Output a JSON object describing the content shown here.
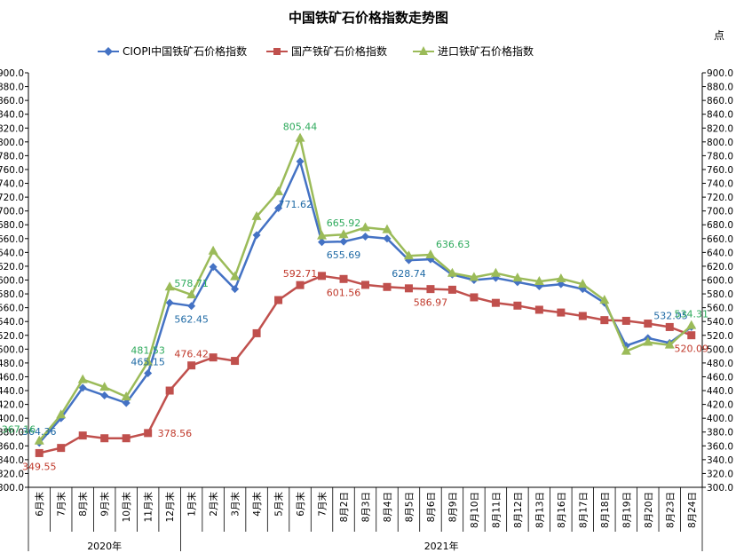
{
  "chart_data": {
    "type": "line",
    "title": "中国铁矿石价格指数走势图",
    "unit_label": "点",
    "ylim": [
      300,
      900
    ],
    "ystep": 20,
    "y_tick_decimals": 1,
    "categories": [
      "6月末",
      "7月末",
      "8月末",
      "9月末",
      "10月末",
      "11月末",
      "12月末",
      "1月末",
      "2月末",
      "3月末",
      "4月末",
      "5月末",
      "6月末",
      "7月末",
      "8月2日",
      "8月3日",
      "8月4日",
      "8月5日",
      "8月6日",
      "8月9日",
      "8月10日",
      "8月11日",
      "8月12日",
      "8月13日",
      "8月16日",
      "8月17日",
      "8月18日",
      "8月19日",
      "8月20日",
      "8月23日",
      "8月24日"
    ],
    "groups": [
      {
        "label": "2020年",
        "start": 0,
        "end": 6
      },
      {
        "label": "2021年",
        "start": 7,
        "end": 30
      }
    ],
    "series": [
      {
        "name": "CIOPI中国铁矿石价格指数",
        "color": "#4472C4",
        "marker": "diamond",
        "values": [
          364.36,
          400,
          444,
          433,
          422,
          465.15,
          567,
          562.45,
          619,
          587,
          665,
          704,
          771.62,
          655,
          655.69,
          663,
          660,
          628.74,
          630,
          608,
          600,
          603,
          597,
          591,
          594,
          587,
          567,
          505,
          516,
          509,
          532.05
        ]
      },
      {
        "name": "国产铁矿石价格指数",
        "color": "#C0504D",
        "marker": "square",
        "values": [
          349.55,
          357,
          375,
          371,
          371,
          378.56,
          440,
          476.42,
          488,
          483,
          523,
          571,
          592.71,
          606,
          601.56,
          593,
          590,
          588,
          586.97,
          586,
          575,
          567,
          563,
          557,
          553,
          548,
          542,
          541,
          537,
          532,
          520.09
        ]
      },
      {
        "name": "进口铁矿石价格指数",
        "color": "#9BBB59",
        "marker": "triangle",
        "values": [
          367.16,
          405,
          456,
          445,
          431,
          481.53,
          590,
          578.71,
          642,
          605,
          692,
          728,
          805.44,
          664,
          665.92,
          676,
          673,
          635,
          636.63,
          610,
          604,
          610,
          603,
          598,
          602,
          594,
          571,
          497,
          510,
          506,
          534.31
        ]
      }
    ],
    "annotations": [
      {
        "series": 0,
        "index": 0,
        "text": "364.36",
        "pos": "above"
      },
      {
        "series": 0,
        "index": 5,
        "text": "465.15",
        "pos": "above"
      },
      {
        "series": 0,
        "index": 7,
        "text": "562.45",
        "pos": "below"
      },
      {
        "series": 0,
        "index": 12,
        "text": "771.62",
        "pos": "below-left"
      },
      {
        "series": 0,
        "index": 14,
        "text": "655.69",
        "pos": "below"
      },
      {
        "series": 0,
        "index": 17,
        "text": "628.74",
        "pos": "below"
      },
      {
        "series": 0,
        "index": 30,
        "text": "532.05",
        "pos": "above-left"
      },
      {
        "series": 1,
        "index": 0,
        "text": "349.55",
        "pos": "below"
      },
      {
        "series": 1,
        "index": 5,
        "text": "378.56",
        "pos": "right"
      },
      {
        "series": 1,
        "index": 7,
        "text": "476.42",
        "pos": "above"
      },
      {
        "series": 1,
        "index": 12,
        "text": "592.71",
        "pos": "above"
      },
      {
        "series": 1,
        "index": 14,
        "text": "601.56",
        "pos": "below"
      },
      {
        "series": 1,
        "index": 18,
        "text": "586.97",
        "pos": "below"
      },
      {
        "series": 1,
        "index": 30,
        "text": "520.09",
        "pos": "below"
      },
      {
        "series": 2,
        "index": 0,
        "text": "367.16",
        "pos": "above-left"
      },
      {
        "series": 2,
        "index": 5,
        "text": "481.53",
        "pos": "above"
      },
      {
        "series": 2,
        "index": 7,
        "text": "578.71",
        "pos": "above"
      },
      {
        "series": 2,
        "index": 12,
        "text": "805.44",
        "pos": "above"
      },
      {
        "series": 2,
        "index": 14,
        "text": "665.92",
        "pos": "above"
      },
      {
        "series": 2,
        "index": 18,
        "text": "636.63",
        "pos": "above-right"
      },
      {
        "series": 2,
        "index": 30,
        "text": "534.31",
        "pos": "above"
      }
    ]
  }
}
